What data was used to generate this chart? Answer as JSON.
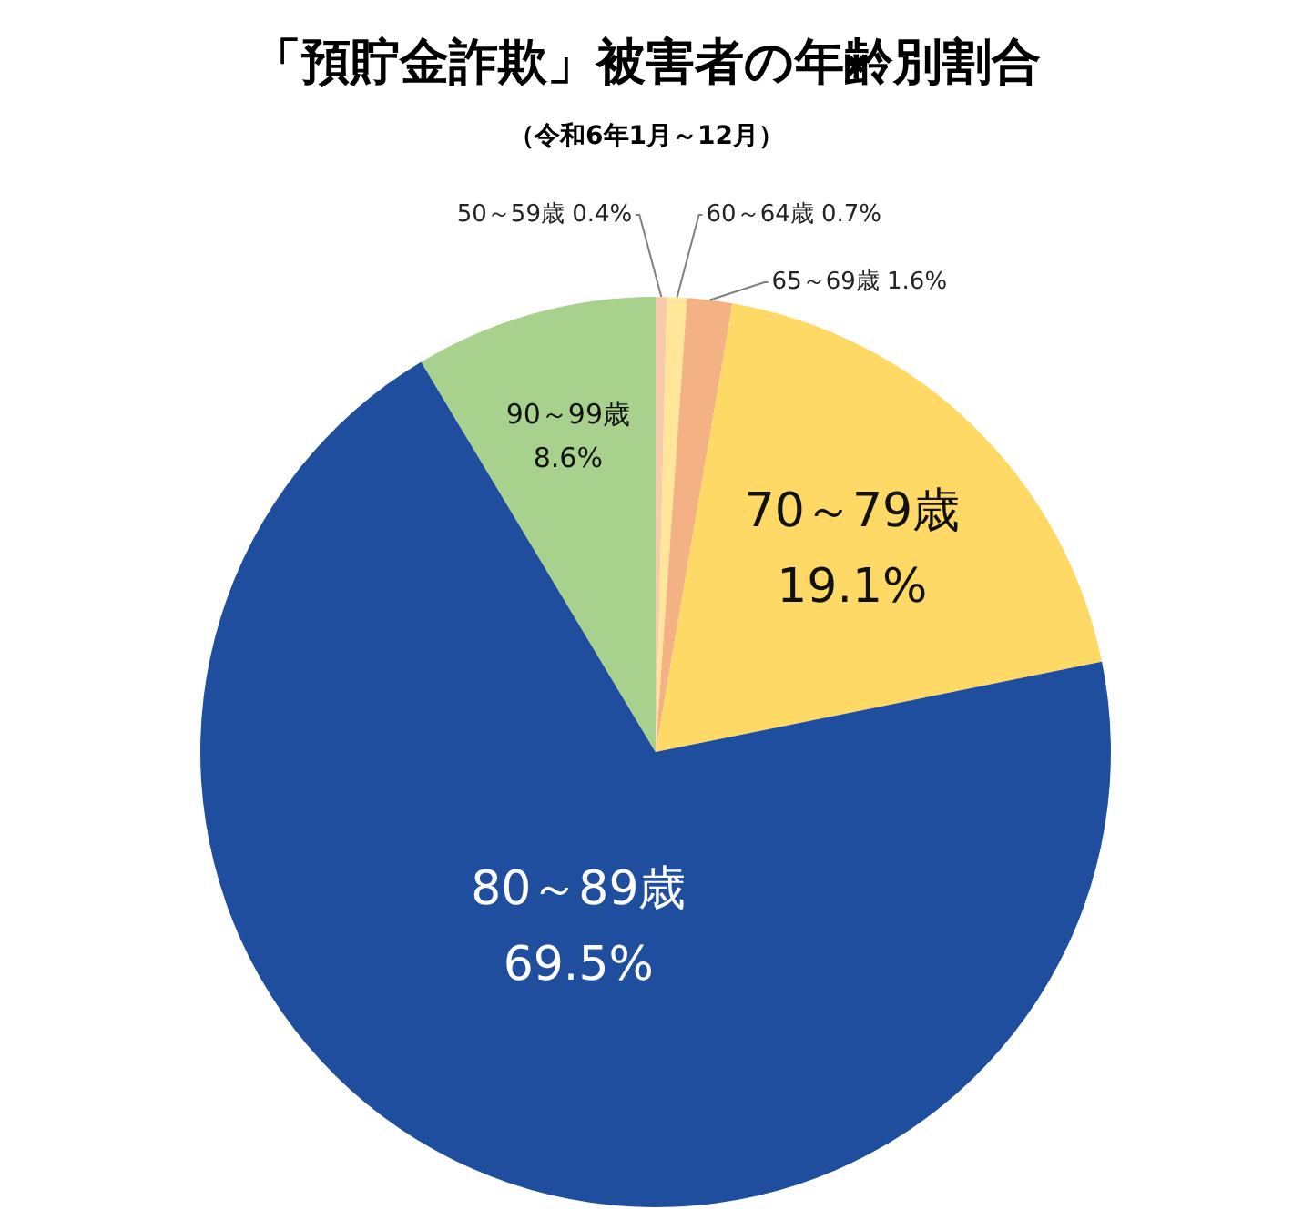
{
  "chart_data": {
    "type": "pie",
    "title": "「預貯金詐欺」被害者の年齢別割合",
    "subtitle": "（令和6年1月～12月）",
    "categories": [
      "50～59歳",
      "60～64歳",
      "65～69歳",
      "70～79歳",
      "80～89歳",
      "90～99歳"
    ],
    "values": [
      0.4,
      0.7,
      1.6,
      19.1,
      69.5,
      8.6
    ],
    "value_labels": [
      "0.4%",
      "0.7%",
      "1.6%",
      "19.1%",
      "69.5%",
      "8.6%"
    ],
    "colors": [
      "#f8cbad",
      "#ffe699",
      "#f4b183",
      "#ffd966",
      "#1f4e9f",
      "#a9d18e"
    ],
    "legend": false
  }
}
